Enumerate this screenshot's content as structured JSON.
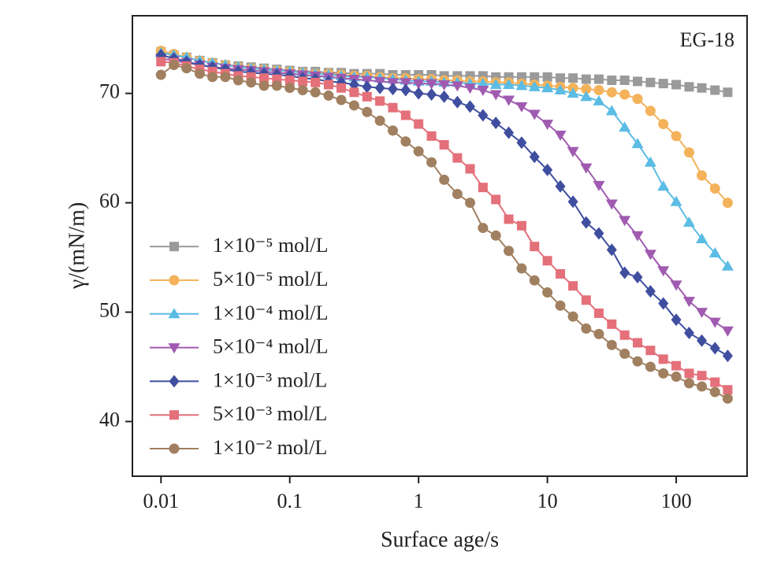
{
  "chart_data": {
    "type": "line",
    "annotation": "EG-18",
    "xlabel": "Surface age/s",
    "ylabel": "γ/(mN/m)",
    "xscale": "log",
    "xlim": [
      0.006,
      355
    ],
    "xticks": [
      0.01,
      0.1,
      1,
      10,
      100
    ],
    "ylim": [
      35,
      77.1
    ],
    "yticks": [
      40,
      50,
      60,
      70
    ],
    "legend": "lower left",
    "x": [
      0.01,
      0.0126,
      0.0158,
      0.02,
      0.0251,
      0.0316,
      0.0398,
      0.0501,
      0.0631,
      0.0794,
      0.1,
      0.126,
      0.158,
      0.2,
      0.251,
      0.316,
      0.398,
      0.501,
      0.631,
      0.794,
      1,
      1.26,
      1.58,
      2,
      2.51,
      3.16,
      3.98,
      5.01,
      6.31,
      7.94,
      10,
      12.6,
      15.8,
      20,
      25.1,
      31.6,
      39.8,
      50.1,
      63.1,
      79.4,
      100,
      126,
      158,
      200,
      251
    ],
    "series": [
      {
        "name": "1×10⁻⁵ mol/L",
        "color": "#9a9a9a",
        "marker": "square",
        "values": [
          73.8,
          73.5,
          73.3,
          73.0,
          72.8,
          72.6,
          72.5,
          72.4,
          72.3,
          72.2,
          72.1,
          72.0,
          72.0,
          71.9,
          71.9,
          71.8,
          71.8,
          71.8,
          71.7,
          71.7,
          71.7,
          71.7,
          71.6,
          71.6,
          71.6,
          71.6,
          71.5,
          71.5,
          71.5,
          71.5,
          71.5,
          71.4,
          71.4,
          71.3,
          71.3,
          71.2,
          71.2,
          71.1,
          71.0,
          70.9,
          70.8,
          70.6,
          70.5,
          70.3,
          70.1
        ]
      },
      {
        "name": "5×10⁻⁵ mol/L",
        "color": "#f4b25a",
        "marker": "circle",
        "values": [
          73.9,
          73.6,
          73.3,
          73.0,
          72.8,
          72.6,
          72.4,
          72.3,
          72.2,
          72.1,
          72.0,
          71.9,
          71.8,
          71.8,
          71.7,
          71.6,
          71.6,
          71.5,
          71.4,
          71.4,
          71.3,
          71.3,
          71.2,
          71.2,
          71.1,
          71.1,
          71.0,
          71.0,
          70.9,
          70.8,
          70.7,
          70.6,
          70.5,
          70.4,
          70.3,
          70.1,
          69.9,
          69.5,
          68.4,
          67.2,
          66.1,
          64.6,
          62.5,
          61.3,
          60.0
        ]
      },
      {
        "name": "1×10⁻⁴ mol/L",
        "color": "#5bbce4",
        "marker": "triangle-up",
        "values": [
          73.7,
          73.5,
          73.3,
          73.0,
          72.8,
          72.6,
          72.4,
          72.3,
          72.2,
          72.1,
          72.0,
          71.9,
          71.8,
          71.7,
          71.6,
          71.5,
          71.5,
          71.4,
          71.3,
          71.2,
          71.1,
          71.1,
          71.0,
          71.0,
          70.9,
          70.9,
          70.8,
          70.8,
          70.7,
          70.6,
          70.5,
          70.3,
          70.0,
          69.7,
          69.3,
          68.4,
          66.9,
          65.4,
          63.7,
          61.5,
          60.1,
          58.2,
          56.7,
          55.4,
          54.2
        ]
      },
      {
        "name": "5×10⁻⁴ mol/L",
        "color": "#a05bb0",
        "marker": "triangle-down",
        "values": [
          73.2,
          73.0,
          72.8,
          72.6,
          72.4,
          72.3,
          72.2,
          72.1,
          72.0,
          71.9,
          71.8,
          71.7,
          71.6,
          71.5,
          71.4,
          71.3,
          71.2,
          71.1,
          71.0,
          71.0,
          70.9,
          70.9,
          70.8,
          70.7,
          70.5,
          70.3,
          69.9,
          69.4,
          68.8,
          68.1,
          67.2,
          66.2,
          64.7,
          63.2,
          61.6,
          59.9,
          58.4,
          57.0,
          55.3,
          53.8,
          52.5,
          51.0,
          50.0,
          49.1,
          48.3
        ]
      },
      {
        "name": "1×10⁻³ mol/L",
        "color": "#3f4e9f",
        "marker": "diamond",
        "values": [
          73.5,
          73.2,
          72.9,
          72.6,
          72.4,
          72.2,
          72.0,
          71.9,
          71.8,
          71.7,
          71.6,
          71.4,
          71.3,
          71.1,
          71.0,
          70.8,
          70.6,
          70.5,
          70.4,
          70.3,
          70.0,
          69.9,
          69.7,
          69.2,
          68.8,
          68.0,
          67.3,
          66.4,
          65.5,
          64.2,
          63.0,
          61.5,
          60.1,
          58.2,
          57.2,
          55.7,
          53.6,
          53.2,
          51.9,
          50.8,
          49.3,
          48.1,
          47.4,
          46.7,
          46.0
        ]
      },
      {
        "name": "5×10⁻³ mol/L",
        "color": "#e4707a",
        "marker": "square",
        "values": [
          72.9,
          72.8,
          72.5,
          72.2,
          72.0,
          71.8,
          71.6,
          71.5,
          71.4,
          71.3,
          71.2,
          71.1,
          71.0,
          70.8,
          70.5,
          70.1,
          69.7,
          69.3,
          68.7,
          68.0,
          67.2,
          66.1,
          65.3,
          64.1,
          63.1,
          61.4,
          60.3,
          58.5,
          57.9,
          56.0,
          54.7,
          53.5,
          52.4,
          51.1,
          49.9,
          48.9,
          47.9,
          47.2,
          46.5,
          45.7,
          45.1,
          44.4,
          44.2,
          43.6,
          42.9
        ]
      },
      {
        "name": "1×10⁻² mol/L",
        "color": "#a08060",
        "marker": "circle",
        "values": [
          71.7,
          72.6,
          72.3,
          71.8,
          71.5,
          71.5,
          71.2,
          71.0,
          70.7,
          70.7,
          70.5,
          70.3,
          70.1,
          69.8,
          69.4,
          68.9,
          68.3,
          67.5,
          66.6,
          65.6,
          64.7,
          63.7,
          62.1,
          60.8,
          60.0,
          57.7,
          57.0,
          55.6,
          54.0,
          52.9,
          51.8,
          50.6,
          49.6,
          48.5,
          48.0,
          47.0,
          46.2,
          45.5,
          45.0,
          44.4,
          44.1,
          43.5,
          43.2,
          42.7,
          42.1
        ]
      }
    ]
  }
}
